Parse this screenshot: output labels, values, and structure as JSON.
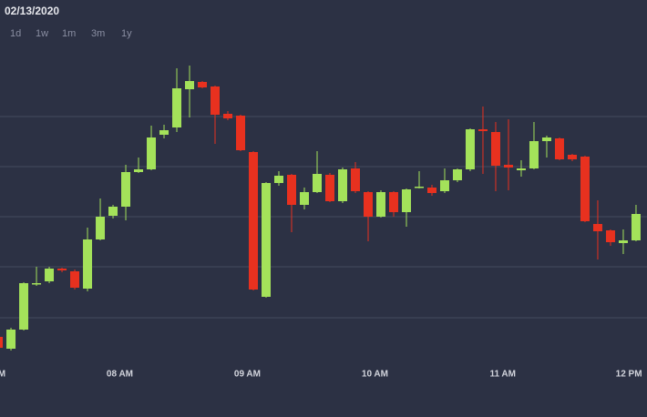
{
  "header": {
    "date": "02/13/2020",
    "ranges": [
      "1d",
      "1w",
      "1m",
      "3m",
      "1y"
    ]
  },
  "chart_data": {
    "type": "candlestick",
    "categories": [
      null,
      null,
      null,
      null,
      null,
      null,
      null,
      null,
      null,
      null,
      null,
      null,
      null,
      null,
      null,
      null,
      null,
      null,
      null,
      null,
      null,
      null,
      null,
      null,
      null,
      null,
      null,
      null,
      null,
      null,
      null,
      null,
      null,
      null,
      null,
      null,
      null,
      null,
      null,
      null,
      null,
      null,
      null,
      null,
      null,
      null,
      null,
      null,
      null,
      null,
      null
    ],
    "open": [
      30,
      17,
      38,
      88,
      91,
      105,
      102,
      83,
      137,
      163,
      173,
      211,
      214,
      252,
      260,
      302,
      310,
      305,
      275,
      273,
      233,
      74,
      199,
      208,
      175,
      189,
      208,
      179,
      215,
      189,
      162,
      189,
      167,
      194,
      194,
      190,
      202,
      214,
      258,
      255,
      219,
      213,
      215,
      245,
      248,
      230,
      228,
      154,
      147,
      133,
      136
    ],
    "high": [
      32,
      40,
      90,
      107,
      107,
      106,
      104,
      150,
      182,
      175,
      219,
      227,
      262,
      263,
      325,
      328,
      311,
      306,
      278,
      274,
      234,
      200,
      212,
      209,
      194,
      234,
      210,
      216,
      222,
      190,
      191,
      190,
      193,
      212,
      197,
      215,
      215,
      259,
      283,
      266,
      269,
      224,
      266,
      251,
      249,
      231,
      229,
      180,
      148,
      148,
      175
    ],
    "low": [
      16,
      15,
      37,
      86,
      89,
      101,
      82,
      80,
      136,
      160,
      158,
      210,
      213,
      248,
      255,
      271,
      303,
      242,
      268,
      234,
      81,
      73,
      196,
      145,
      170,
      188,
      178,
      177,
      188,
      135,
      161,
      162,
      151,
      193,
      185,
      188,
      200,
      212,
      209,
      190,
      191,
      206,
      214,
      227,
      224,
      223,
      156,
      115,
      130,
      121,
      135
    ],
    "close": [
      18,
      38,
      89,
      89,
      105,
      103,
      84,
      137,
      162,
      173,
      211,
      214,
      249,
      257,
      303,
      311,
      304,
      274,
      270,
      235,
      82,
      199,
      207,
      175,
      189,
      209,
      179,
      214,
      190,
      162,
      189,
      167,
      192,
      195,
      188,
      202,
      214,
      258,
      256,
      218,
      216,
      215,
      245,
      249,
      225,
      225,
      157,
      146,
      134,
      136,
      165
    ],
    "up_color": "#a4e25a",
    "down_color": "#e8311f",
    "grid_color": "#454a5e",
    "xlim": [
      0.14,
      50.86
    ],
    "ylim": [
      0,
      400
    ],
    "xticks": [
      {
        "value": -0.5,
        "label": "M"
      },
      {
        "value": 9.5,
        "label": "08 AM"
      },
      {
        "value": 19.5,
        "label": "09 AM"
      },
      {
        "value": 29.5,
        "label": "10 AM"
      },
      {
        "value": 39.5,
        "label": "11 AM"
      },
      {
        "value": 49.4,
        "label": "12 PM"
      }
    ],
    "yticks": [
      51,
      107,
      162,
      217,
      272
    ],
    "grid": true
  }
}
